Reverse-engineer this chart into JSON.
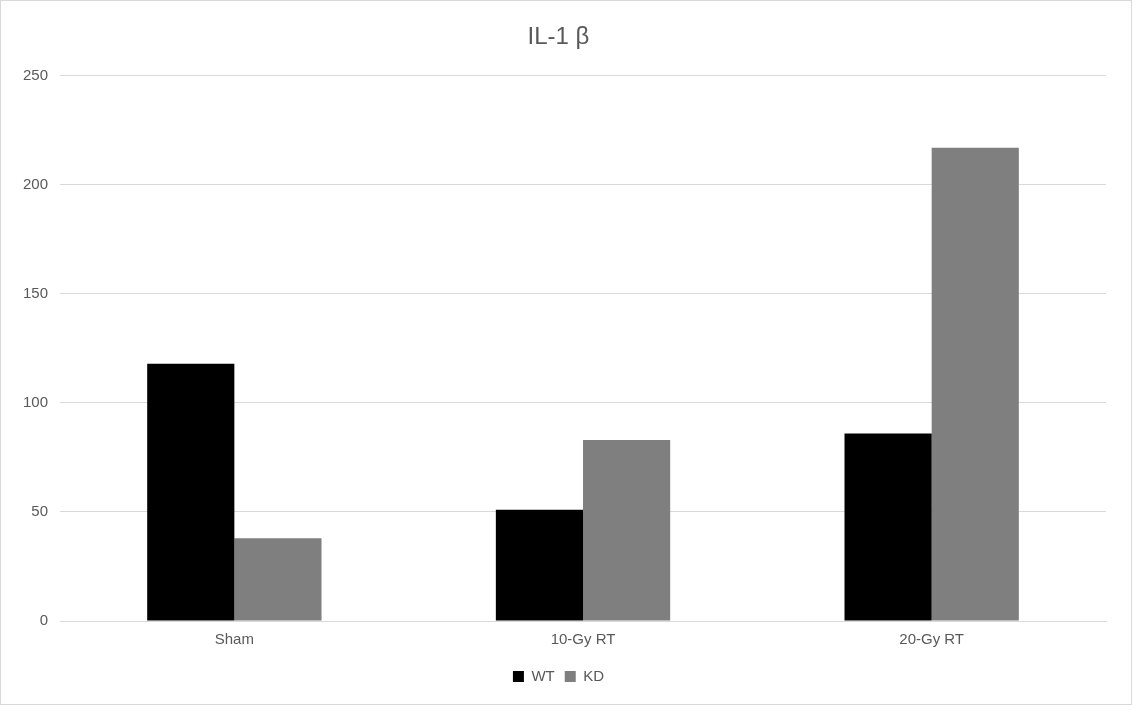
{
  "chart_data": {
    "type": "bar",
    "title": "IL-1 β",
    "categories": [
      "Sham",
      "10-Gy RT",
      "20-Gy RT"
    ],
    "series": [
      {
        "name": "WT",
        "color": "#000000",
        "values": [
          118,
          51,
          86
        ]
      },
      {
        "name": "KD",
        "color": "#7f7f7f",
        "values": [
          38,
          83,
          217
        ]
      }
    ],
    "ylim": [
      0,
      250
    ],
    "yticks": [
      0,
      50,
      100,
      150,
      200,
      250
    ],
    "grid": "y",
    "legend": "bottom"
  }
}
